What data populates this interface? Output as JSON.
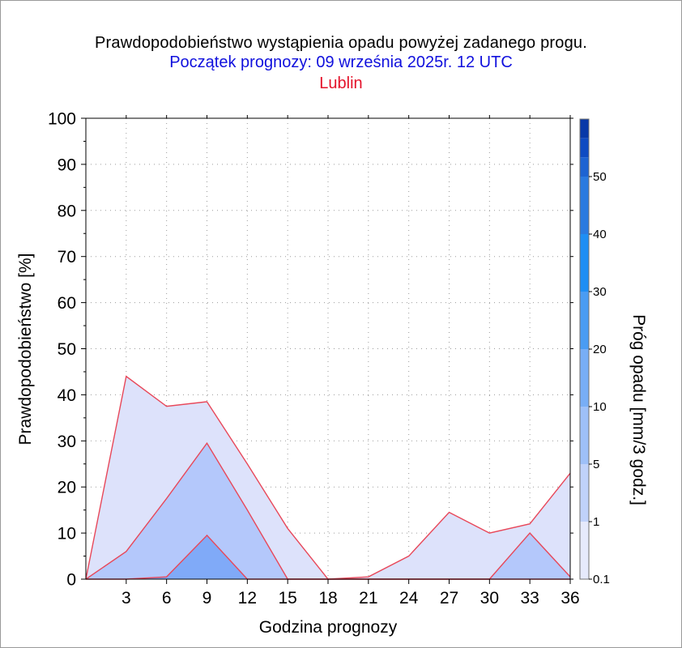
{
  "title": "Prawdopodobieństwo wystąpienia opadu powyżej zadanego progu.",
  "subtitle": "Początek prognozy: 09 września 2025r. 12 UTC",
  "location": "Lublin",
  "chart_data": {
    "type": "area",
    "xlabel": "Godzina prognozy",
    "ylabel": "Prawdopodobieństwo [%]",
    "xlim": [
      0,
      36
    ],
    "ylim": [
      0,
      100
    ],
    "x_ticks": [
      "3",
      "6",
      "9",
      "12",
      "15",
      "18",
      "21",
      "24",
      "27",
      "30",
      "33",
      "36"
    ],
    "y_ticks": [
      "0",
      "10",
      "20",
      "30",
      "40",
      "50",
      "60",
      "70",
      "80",
      "90",
      "100"
    ],
    "grid": true,
    "x": [
      0,
      3,
      6,
      9,
      12,
      15,
      18,
      21,
      24,
      27,
      30,
      33,
      36
    ],
    "series": [
      {
        "name": "0.1",
        "color": "#dde2fb",
        "values": [
          0,
          44,
          37.5,
          38.5,
          25,
          11,
          0,
          0.5,
          5,
          14.5,
          10,
          12,
          23
        ]
      },
      {
        "name": "1",
        "color": "#b4c8fb",
        "values": [
          0,
          6,
          17.5,
          29.5,
          15,
          0,
          0,
          0,
          0,
          0,
          0,
          10,
          0.5
        ]
      },
      {
        "name": "5",
        "color": "#80aaf8",
        "values": [
          0,
          0,
          0.5,
          9.5,
          0,
          0,
          0,
          0,
          0,
          0,
          0,
          0,
          0
        ]
      }
    ],
    "colorbar": {
      "label": "Próg opadu [mm/3 godz.]",
      "tick_labels": [
        "0.1",
        "1",
        "5",
        "10",
        "20",
        "30",
        "40",
        "50"
      ],
      "colors": [
        "#e6eafc",
        "#c0d2fa",
        "#9ec0f8",
        "#78aef6",
        "#4a9cf3",
        "#1e8ef4",
        "#2a7ae0",
        "#1d63d2",
        "#0f4bc2",
        "#0838a8"
      ]
    }
  }
}
